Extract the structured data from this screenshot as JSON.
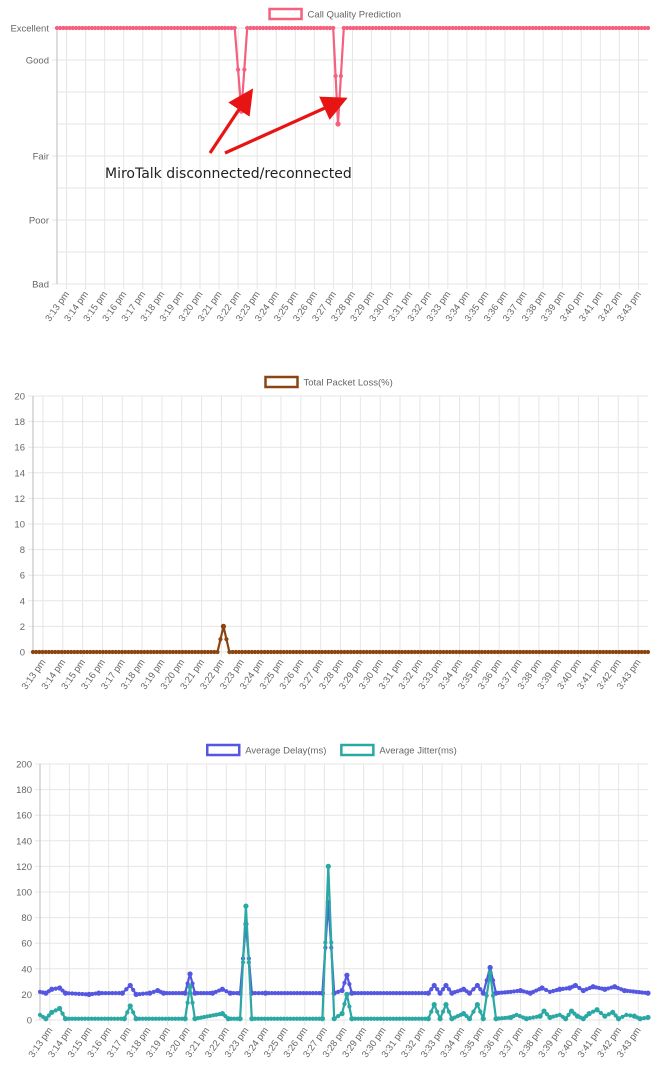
{
  "time_labels": [
    "3:13 pm",
    "3:14 pm",
    "3:15 pm",
    "3:16 pm",
    "3:17 pm",
    "3:18 pm",
    "3:19 pm",
    "3:20 pm",
    "3:21 pm",
    "3:22 pm",
    "3:23 pm",
    "3:24 pm",
    "3:25 pm",
    "3:26 pm",
    "3:27 pm",
    "3:28 pm",
    "3:29 pm",
    "3:30 pm",
    "3:31 pm",
    "3:32 pm",
    "3:33 pm",
    "3:34 pm",
    "3:35 pm",
    "3:36 pm",
    "3:37 pm",
    "3:38 pm",
    "3:39 pm",
    "3:40 pm",
    "3:41 pm",
    "3:42 pm",
    "3:43 pm"
  ],
  "colors": {
    "quality": "#f5607e",
    "packet_loss": "#8b4513",
    "delay": "#5557e0",
    "jitter": "#2aa8a4",
    "grid": "#e6e6e6",
    "axis": "#bbbbbb",
    "arrow": "#e81414"
  },
  "annotation": {
    "text": "MiroTalk disconnected/reconnected"
  },
  "chart_data": [
    {
      "type": "line",
      "legend": "Call Quality Prediction",
      "y_categories": [
        "Bad",
        "Poor",
        "Fair",
        "Good",
        "Excellent"
      ],
      "ylim": [
        0,
        4
      ],
      "x_range": [
        0,
        30.6
      ],
      "series": [
        {
          "name": "Call Quality Prediction",
          "points": [
            [
              0,
              4
            ],
            [
              9.2,
              4
            ],
            [
              9.55,
              2.7
            ],
            [
              9.85,
              4
            ],
            [
              14.3,
              4
            ],
            [
              14.55,
              2.5
            ],
            [
              14.85,
              4
            ],
            [
              30.6,
              4
            ]
          ]
        }
      ]
    },
    {
      "type": "line",
      "legend": "Total Packet Loss(%)",
      "ylim": [
        0,
        20
      ],
      "yticks": [
        0,
        2,
        4,
        6,
        8,
        10,
        12,
        14,
        16,
        18,
        20
      ],
      "x_range": [
        0,
        31
      ],
      "series": [
        {
          "name": "Total Packet Loss(%)",
          "points": [
            [
              0,
              0
            ],
            [
              9.3,
              0
            ],
            [
              9.6,
              2
            ],
            [
              9.9,
              0
            ],
            [
              31,
              0
            ]
          ]
        }
      ]
    },
    {
      "type": "line",
      "legend": [
        "Average Delay(ms)",
        "Average Jitter(ms)"
      ],
      "ylim": [
        0,
        200
      ],
      "yticks": [
        0,
        20,
        40,
        60,
        80,
        100,
        120,
        140,
        160,
        180,
        200
      ],
      "x_range": [
        0,
        31
      ],
      "series": [
        {
          "name": "Average Delay(ms)",
          "points": [
            [
              0,
              22
            ],
            [
              0.3,
              21
            ],
            [
              0.6,
              24
            ],
            [
              1.0,
              25
            ],
            [
              1.3,
              21
            ],
            [
              2.5,
              20
            ],
            [
              3.0,
              21
            ],
            [
              4.2,
              21
            ],
            [
              4.6,
              27
            ],
            [
              4.9,
              20
            ],
            [
              5.6,
              21
            ],
            [
              6.0,
              23
            ],
            [
              6.3,
              21
            ],
            [
              7.4,
              21
            ],
            [
              7.65,
              36
            ],
            [
              7.9,
              21
            ],
            [
              8.8,
              21
            ],
            [
              9.3,
              24
            ],
            [
              9.7,
              21
            ],
            [
              10.2,
              21
            ],
            [
              10.5,
              75
            ],
            [
              10.8,
              21
            ],
            [
              11.5,
              21
            ],
            [
              14.4,
              21
            ],
            [
              14.7,
              92
            ],
            [
              15.0,
              21
            ],
            [
              15.4,
              23
            ],
            [
              15.65,
              35
            ],
            [
              15.9,
              21
            ],
            [
              19.8,
              21
            ],
            [
              20.1,
              27
            ],
            [
              20.4,
              21
            ],
            [
              20.7,
              27
            ],
            [
              21.0,
              21
            ],
            [
              21.6,
              24
            ],
            [
              21.9,
              21
            ],
            [
              22.3,
              27
            ],
            [
              22.6,
              21
            ],
            [
              22.95,
              41
            ],
            [
              23.25,
              21
            ],
            [
              24.0,
              22
            ],
            [
              24.5,
              23
            ],
            [
              25.0,
              21
            ],
            [
              25.6,
              25
            ],
            [
              26.0,
              22
            ],
            [
              26.5,
              24
            ],
            [
              27.0,
              25
            ],
            [
              27.3,
              27
            ],
            [
              27.7,
              23
            ],
            [
              28.2,
              26
            ],
            [
              28.8,
              24
            ],
            [
              29.3,
              26
            ],
            [
              29.8,
              23
            ],
            [
              30.4,
              22
            ],
            [
              31,
              21
            ]
          ]
        },
        {
          "name": "Average Jitter(ms)",
          "points": [
            [
              0,
              4
            ],
            [
              0.3,
              1
            ],
            [
              0.6,
              6
            ],
            [
              1.0,
              9
            ],
            [
              1.3,
              1
            ],
            [
              4.3,
              1
            ],
            [
              4.6,
              11
            ],
            [
              4.9,
              1
            ],
            [
              7.4,
              1
            ],
            [
              7.65,
              26
            ],
            [
              7.9,
              1
            ],
            [
              9.3,
              5
            ],
            [
              9.6,
              1
            ],
            [
              10.2,
              1
            ],
            [
              10.5,
              89
            ],
            [
              10.8,
              1
            ],
            [
              14.4,
              1
            ],
            [
              14.7,
              120
            ],
            [
              15.0,
              1
            ],
            [
              15.4,
              5
            ],
            [
              15.65,
              20
            ],
            [
              15.9,
              1
            ],
            [
              19.8,
              1
            ],
            [
              20.1,
              12
            ],
            [
              20.4,
              1
            ],
            [
              20.7,
              12
            ],
            [
              21.0,
              1
            ],
            [
              21.6,
              5
            ],
            [
              21.9,
              1
            ],
            [
              22.3,
              12
            ],
            [
              22.6,
              1
            ],
            [
              22.95,
              37
            ],
            [
              23.25,
              1
            ],
            [
              24.0,
              2
            ],
            [
              24.3,
              4
            ],
            [
              24.8,
              1
            ],
            [
              25.5,
              3
            ],
            [
              25.7,
              7
            ],
            [
              26.0,
              2
            ],
            [
              26.5,
              4
            ],
            [
              26.8,
              1
            ],
            [
              27.1,
              7
            ],
            [
              27.4,
              3
            ],
            [
              27.7,
              1
            ],
            [
              28.0,
              5
            ],
            [
              28.4,
              8
            ],
            [
              28.8,
              3
            ],
            [
              29.2,
              6
            ],
            [
              29.5,
              1
            ],
            [
              29.9,
              4
            ],
            [
              30.3,
              3
            ],
            [
              30.6,
              1
            ],
            [
              31,
              2
            ]
          ]
        }
      ]
    }
  ]
}
